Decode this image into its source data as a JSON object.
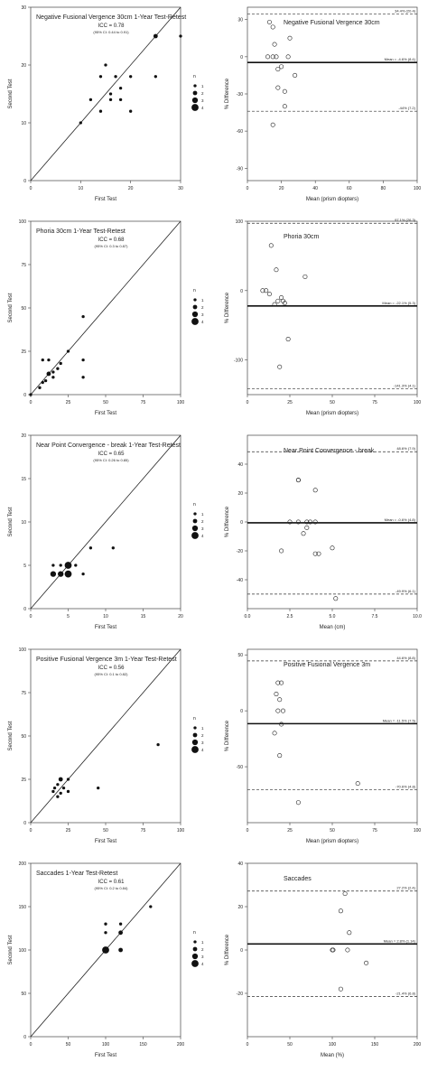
{
  "chart_data": [
    {
      "type": "scatter",
      "title": "Negative Fusional Vergence 30cm 1-Year Test-Retest",
      "icc": "ICC = 0.78",
      "ci": "(95% CI: 0.44 to 0.91)",
      "xlabel": "First Test",
      "ylabel": "Second Test",
      "xlim": [
        0,
        30
      ],
      "ylim": [
        0,
        30
      ],
      "xticks": [
        {
          "v": 0,
          "label": "0"
        },
        {
          "v": 10,
          "label": "10"
        },
        {
          "v": 20,
          "label": "20"
        },
        {
          "v": 30,
          "label": "30"
        }
      ],
      "yticks": [
        {
          "v": 0,
          "label": "0"
        },
        {
          "v": 10,
          "label": "10"
        },
        {
          "v": 20,
          "label": "20"
        },
        {
          "v": 30,
          "label": "30"
        }
      ],
      "legend_title": "n",
      "legend": [
        "1",
        "2",
        "3",
        "4"
      ],
      "points": [
        [
          10,
          10
        ],
        [
          12,
          14
        ],
        [
          14,
          18
        ],
        [
          14,
          12
        ],
        [
          15,
          20
        ],
        [
          16,
          14
        ],
        [
          16,
          15
        ],
        [
          17,
          18
        ],
        [
          18,
          16
        ],
        [
          18,
          14
        ],
        [
          20,
          18
        ],
        [
          20,
          12
        ],
        [
          25,
          25
        ],
        [
          25,
          18
        ],
        [
          30,
          25
        ]
      ],
      "point_sizes": [
        1,
        1,
        1,
        1,
        1,
        1,
        1,
        1,
        1,
        1,
        1,
        1,
        2,
        1,
        1
      ]
    },
    {
      "type": "bland-altman",
      "title": "Negative Fusional Vergence 30cm",
      "xlabel": "Mean (prism diopters)",
      "ylabel": "% Difference",
      "xlim": [
        0,
        100
      ],
      "ylim": [
        -100,
        40
      ],
      "xticks": [
        {
          "v": 0,
          "label": "0"
        },
        {
          "v": 20,
          "label": "20"
        },
        {
          "v": 40,
          "label": "40"
        },
        {
          "v": 60,
          "label": "60"
        },
        {
          "v": 80,
          "label": "80"
        },
        {
          "v": 100,
          "label": "100"
        }
      ],
      "yticks": [
        {
          "v": 30,
          "label": "30"
        },
        {
          "v": 0,
          "label": "0"
        },
        {
          "v": -30,
          "label": "-30"
        },
        {
          "v": -60,
          "label": "-60"
        },
        {
          "v": -90,
          "label": "-90"
        }
      ],
      "mean": -4.6,
      "upper": 34.4,
      "lower": -44.0,
      "mean_label": "Mean = -4.6% (8.4)",
      "upper_label": "34.4% (20.4)",
      "lower_label": "-44% (7.2)",
      "points": [
        [
          13,
          28
        ],
        [
          15,
          24
        ],
        [
          16,
          10
        ],
        [
          15,
          0
        ],
        [
          12,
          0
        ],
        [
          17,
          0
        ],
        [
          18,
          -10
        ],
        [
          20,
          -8
        ],
        [
          24,
          0
        ],
        [
          25,
          15
        ],
        [
          22,
          -28
        ],
        [
          28,
          -15
        ],
        [
          18,
          -25
        ],
        [
          22,
          -40
        ],
        [
          15,
          -55
        ]
      ]
    },
    {
      "type": "scatter",
      "title": "Phoria 30cm 1-Year Test-Retest",
      "icc": "ICC = 0.68",
      "ci": "(95% CI: 0.3 to 0.87)",
      "xlabel": "First Test",
      "ylabel": "Second Test",
      "xlim": [
        0,
        100
      ],
      "ylim": [
        0,
        100
      ],
      "xticks": [
        {
          "v": 0,
          "label": "0"
        },
        {
          "v": 25,
          "label": "25"
        },
        {
          "v": 50,
          "label": "50"
        },
        {
          "v": 75,
          "label": "75"
        },
        {
          "v": 100,
          "label": "100"
        }
      ],
      "yticks": [
        {
          "v": 0,
          "label": "0"
        },
        {
          "v": 25,
          "label": "25"
        },
        {
          "v": 50,
          "label": "50"
        },
        {
          "v": 75,
          "label": "75"
        },
        {
          "v": 100,
          "label": "100"
        }
      ],
      "legend_title": "n",
      "legend": [
        "1",
        "2",
        "3",
        "4"
      ],
      "points": [
        [
          0,
          0
        ],
        [
          6,
          4
        ],
        [
          8,
          7
        ],
        [
          10,
          8
        ],
        [
          12,
          12
        ],
        [
          15,
          13
        ],
        [
          8,
          20
        ],
        [
          12,
          20
        ],
        [
          18,
          15
        ],
        [
          20,
          18
        ],
        [
          15,
          10
        ],
        [
          25,
          25
        ],
        [
          35,
          45
        ],
        [
          35,
          20
        ],
        [
          35,
          10
        ]
      ],
      "point_sizes": [
        1,
        1,
        1,
        1,
        2,
        1,
        1,
        1,
        1,
        1,
        1,
        1,
        1,
        1,
        1
      ]
    },
    {
      "type": "bland-altman",
      "title": "Phoria 30cm",
      "xlabel": "Mean (prism diopters)",
      "ylabel": "% Difference",
      "xlim": [
        0,
        100
      ],
      "ylim": [
        -150,
        100
      ],
      "xticks": [
        {
          "v": 0,
          "label": "0"
        },
        {
          "v": 25,
          "label": "25"
        },
        {
          "v": 50,
          "label": "50"
        },
        {
          "v": 75,
          "label": "75"
        },
        {
          "v": 100,
          "label": "100"
        }
      ],
      "yticks": [
        {
          "v": 100,
          "label": "100"
        },
        {
          "v": 0,
          "label": "0"
        },
        {
          "v": -100,
          "label": "-100"
        }
      ],
      "mean": -22.1,
      "upper": 97.1,
      "lower": -141.3,
      "mean_label": "Mean = -22.1% (5.3)",
      "upper_label": "97.1% (26.3)",
      "lower_label": "-141.3% (4.1)",
      "points": [
        [
          9,
          0
        ],
        [
          11,
          0
        ],
        [
          13,
          -5
        ],
        [
          16,
          -20
        ],
        [
          14,
          65
        ],
        [
          17,
          30
        ],
        [
          18,
          -15
        ],
        [
          20,
          -10
        ],
        [
          21,
          -15
        ],
        [
          22,
          -18
        ],
        [
          34,
          20
        ],
        [
          24,
          -70
        ],
        [
          19,
          -110
        ]
      ]
    },
    {
      "type": "scatter",
      "title": "Near Point Convergence - break 1-Year Test-Retest",
      "icc": "ICC = 0.65",
      "ci": "(95% CI: 0.26 to 0.85)",
      "xlabel": "First Test",
      "ylabel": "Second Test",
      "xlim": [
        0,
        20
      ],
      "ylim": [
        0,
        20
      ],
      "xticks": [
        {
          "v": 0,
          "label": "0"
        },
        {
          "v": 5,
          "label": "5"
        },
        {
          "v": 10,
          "label": "10"
        },
        {
          "v": 15,
          "label": "15"
        },
        {
          "v": 20,
          "label": "20"
        }
      ],
      "yticks": [
        {
          "v": 0,
          "label": "0"
        },
        {
          "v": 5,
          "label": "5"
        },
        {
          "v": 10,
          "label": "10"
        },
        {
          "v": 15,
          "label": "15"
        },
        {
          "v": 20,
          "label": "20"
        }
      ],
      "legend_title": "n",
      "legend": [
        "1",
        "2",
        "3",
        "4"
      ],
      "points": [
        [
          3,
          4
        ],
        [
          3,
          5
        ],
        [
          4,
          4
        ],
        [
          4,
          5
        ],
        [
          5,
          4
        ],
        [
          5,
          5
        ],
        [
          6,
          5
        ],
        [
          7,
          4
        ],
        [
          8,
          7
        ],
        [
          11,
          7
        ]
      ],
      "point_sizes": [
        3,
        1,
        3,
        1,
        4,
        4,
        1,
        1,
        1,
        1
      ]
    },
    {
      "type": "bland-altman",
      "title": "Near Point Convergence - break",
      "xlabel": "Mean (cm)",
      "ylabel": "% Difference",
      "xlim": [
        0,
        10
      ],
      "ylim": [
        -60,
        60
      ],
      "xticks": [
        {
          "v": 0,
          "label": "0.0"
        },
        {
          "v": 2.5,
          "label": "2.5"
        },
        {
          "v": 5,
          "label": "5.0"
        },
        {
          "v": 7.5,
          "label": "7.5"
        },
        {
          "v": 10,
          "label": "10.0"
        }
      ],
      "yticks": [
        {
          "v": 40,
          "label": "40"
        },
        {
          "v": 20,
          "label": "20"
        },
        {
          "v": 0,
          "label": "0"
        },
        {
          "v": -20,
          "label": "-20"
        },
        {
          "v": -40,
          "label": "-40"
        }
      ],
      "mean": -0.6,
      "upper": 48.6,
      "lower": -49.9,
      "mean_label": "Mean = -0.6% (4.8)",
      "upper_label": "48.6% (7.9)",
      "lower_label": "-49.9% (6.1)",
      "points": [
        [
          3,
          29
        ],
        [
          3,
          29
        ],
        [
          4,
          22
        ],
        [
          3,
          0
        ],
        [
          4,
          0
        ],
        [
          3.5,
          -4
        ],
        [
          4,
          -22
        ],
        [
          4.2,
          -22
        ],
        [
          3.3,
          -8
        ],
        [
          5,
          -18
        ],
        [
          5.2,
          -53
        ],
        [
          3.5,
          0
        ],
        [
          3.7,
          0
        ],
        [
          2,
          -20
        ],
        [
          2.5,
          0
        ]
      ]
    },
    {
      "type": "scatter",
      "title": "Positive Fusional Vergence 3m 1-Year Test-Retest",
      "icc": "ICC = 0.56",
      "ci": "(95% CI: 0.1 to 0.82)",
      "xlabel": "First Test",
      "ylabel": "Second Test",
      "xlim": [
        0,
        100
      ],
      "ylim": [
        0,
        100
      ],
      "xticks": [
        {
          "v": 0,
          "label": "0"
        },
        {
          "v": 25,
          "label": "25"
        },
        {
          "v": 50,
          "label": "50"
        },
        {
          "v": 75,
          "label": "75"
        },
        {
          "v": 100,
          "label": "100"
        }
      ],
      "yticks": [
        {
          "v": 0,
          "label": "0"
        },
        {
          "v": 25,
          "label": "25"
        },
        {
          "v": 50,
          "label": "50"
        },
        {
          "v": 75,
          "label": "75"
        },
        {
          "v": 100,
          "label": "100"
        }
      ],
      "legend_title": "n",
      "legend": [
        "1",
        "2",
        "3",
        "4"
      ],
      "points": [
        [
          15,
          18
        ],
        [
          16,
          20
        ],
        [
          18,
          15
        ],
        [
          18,
          22
        ],
        [
          20,
          25
        ],
        [
          20,
          17
        ],
        [
          22,
          20
        ],
        [
          25,
          25
        ],
        [
          25,
          18
        ],
        [
          45,
          20
        ],
        [
          85,
          45
        ]
      ],
      "point_sizes": [
        1,
        1,
        1,
        1,
        2,
        1,
        1,
        1,
        1,
        1,
        1
      ]
    },
    {
      "type": "bland-altman",
      "title": "Positive Fusional Vergence 3m",
      "xlabel": "Mean (prism diopters)",
      "ylabel": "% Difference",
      "xlim": [
        0,
        100
      ],
      "ylim": [
        -100,
        55
      ],
      "xticks": [
        {
          "v": 0,
          "label": "0"
        },
        {
          "v": 25,
          "label": "25"
        },
        {
          "v": 50,
          "label": "50"
        },
        {
          "v": 75,
          "label": "75"
        },
        {
          "v": 100,
          "label": "100"
        }
      ],
      "yticks": [
        {
          "v": 50,
          "label": "50"
        },
        {
          "v": 0,
          "label": "0"
        },
        {
          "v": -50,
          "label": "-50"
        }
      ],
      "mean": -11.5,
      "upper": 44.6,
      "lower": -70.6,
      "mean_label": "Mean = -11.5% (7.5)",
      "upper_label": "44.6% (8.8)",
      "lower_label": "-70.6% (4.8)",
      "points": [
        [
          18,
          25
        ],
        [
          20,
          25
        ],
        [
          17,
          15
        ],
        [
          19,
          10
        ],
        [
          18,
          0
        ],
        [
          21,
          0
        ],
        [
          20,
          -12
        ],
        [
          16,
          -20
        ],
        [
          19,
          -40
        ],
        [
          30,
          -82
        ],
        [
          65,
          -65
        ]
      ]
    },
    {
      "type": "scatter",
      "title": "Saccades 1-Year Test-Retest",
      "icc": "ICC = 0.61",
      "ci": "(95% CI: 0.2 to 0.84)",
      "xlabel": "First Test",
      "ylabel": "Second Test",
      "xlim": [
        0,
        200
      ],
      "ylim": [
        0,
        200
      ],
      "xticks": [
        {
          "v": 0,
          "label": "0"
        },
        {
          "v": 50,
          "label": "50"
        },
        {
          "v": 100,
          "label": "100"
        },
        {
          "v": 150,
          "label": "150"
        },
        {
          "v": 200,
          "label": "200"
        }
      ],
      "yticks": [
        {
          "v": 0,
          "label": "0"
        },
        {
          "v": 50,
          "label": "50"
        },
        {
          "v": 100,
          "label": "100"
        },
        {
          "v": 150,
          "label": "150"
        },
        {
          "v": 200,
          "label": "200"
        }
      ],
      "legend_title": "n",
      "legend": [
        "1",
        "2",
        "3",
        "4"
      ],
      "points": [
        [
          100,
          100
        ],
        [
          100,
          120
        ],
        [
          100,
          130
        ],
        [
          120,
          120
        ],
        [
          120,
          130
        ],
        [
          120,
          100
        ],
        [
          160,
          150
        ]
      ],
      "point_sizes": [
        4,
        1,
        1,
        2,
        1,
        2,
        1
      ]
    },
    {
      "type": "bland-altman",
      "title": "Saccades",
      "xlabel": "Mean (%)",
      "ylabel": "% Difference",
      "xlim": [
        0,
        200
      ],
      "ylim": [
        -40,
        40
      ],
      "xticks": [
        {
          "v": 0,
          "label": "0"
        },
        {
          "v": 50,
          "label": "50"
        },
        {
          "v": 100,
          "label": "100"
        },
        {
          "v": 150,
          "label": "150"
        },
        {
          "v": 200,
          "label": "200"
        }
      ],
      "yticks": [
        {
          "v": 40,
          "label": "40"
        },
        {
          "v": 20,
          "label": "20"
        },
        {
          "v": 0,
          "label": "0"
        },
        {
          "v": -20,
          "label": "-20"
        }
      ],
      "mean": 2.8,
      "upper": 27.2,
      "lower": -21.4,
      "mean_label": "Mean = 2.8% (1.14)",
      "upper_label": "27.2% (2.4)",
      "lower_label": "-21.4% (6.8)",
      "points": [
        [
          100,
          0
        ],
        [
          101,
          0
        ],
        [
          110,
          18
        ],
        [
          115,
          26
        ],
        [
          120,
          8
        ],
        [
          118,
          0
        ],
        [
          140,
          -6
        ],
        [
          110,
          -18
        ]
      ]
    }
  ]
}
